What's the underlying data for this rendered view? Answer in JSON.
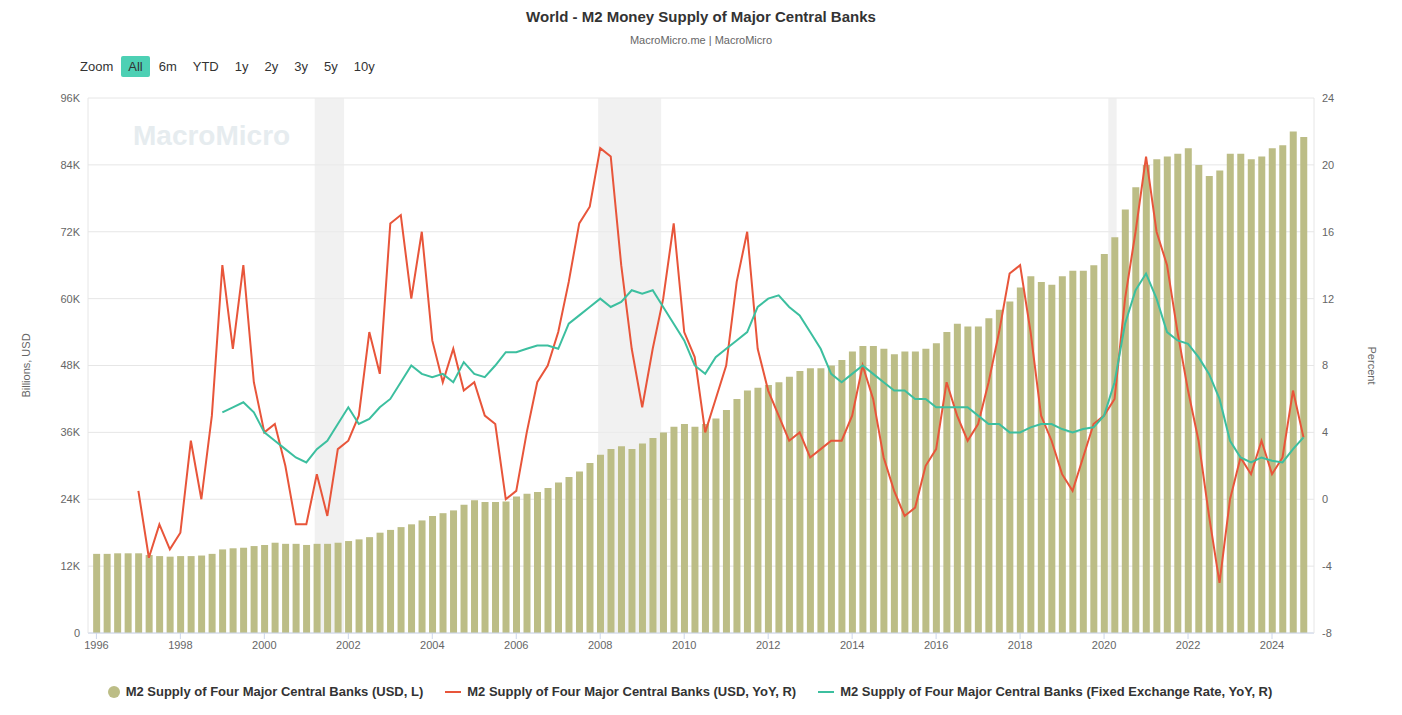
{
  "chart_data": {
    "type": "combo",
    "title": "World - M2 Money Supply of Major Central Banks",
    "subtitle": "MacroMicro.me | MacroMicro",
    "watermark": "MacroMicro",
    "zoom_label": "Zoom",
    "zoom_buttons": [
      "All",
      "6m",
      "YTD",
      "1y",
      "2y",
      "3y",
      "5y",
      "10y"
    ],
    "y_label": "Billions, USD",
    "y2_label": "Percent",
    "grid": true,
    "legend": "bottom",
    "xlim": [
      1995.8,
      2025.0
    ],
    "xticks": [
      1996,
      1998,
      2000,
      2002,
      2004,
      2006,
      2008,
      2010,
      2012,
      2014,
      2016,
      2018,
      2020,
      2022,
      2024
    ],
    "ylim": [
      0,
      96000
    ],
    "yticks": [
      {
        "value": 0,
        "label": "0"
      },
      {
        "value": 12000,
        "label": "12K"
      },
      {
        "value": 24000,
        "label": "24K"
      },
      {
        "value": 36000,
        "label": "36K"
      },
      {
        "value": 48000,
        "label": "48K"
      },
      {
        "value": 60000,
        "label": "60K"
      },
      {
        "value": 72000,
        "label": "72K"
      },
      {
        "value": 84000,
        "label": "84K"
      },
      {
        "value": 96000,
        "label": "96K"
      }
    ],
    "y2lim": [
      -8,
      24
    ],
    "y2ticks": [
      -8,
      -4,
      0,
      4,
      8,
      12,
      16,
      20,
      24
    ],
    "shaded_periods": [
      [
        2001.2,
        2001.9
      ],
      [
        2007.95,
        2009.45
      ],
      [
        2020.1,
        2020.3
      ]
    ],
    "x": [
      1996,
      1996.25,
      1996.5,
      1996.75,
      1997,
      1997.25,
      1997.5,
      1997.75,
      1998,
      1998.25,
      1998.5,
      1998.75,
      1999,
      1999.25,
      1999.5,
      1999.75,
      2000,
      2000.25,
      2000.5,
      2000.75,
      2001,
      2001.25,
      2001.5,
      2001.75,
      2002,
      2002.25,
      2002.5,
      2002.75,
      2003,
      2003.25,
      2003.5,
      2003.75,
      2004,
      2004.25,
      2004.5,
      2004.75,
      2005,
      2005.25,
      2005.5,
      2005.75,
      2006,
      2006.25,
      2006.5,
      2006.75,
      2007,
      2007.25,
      2007.5,
      2007.75,
      2008,
      2008.25,
      2008.5,
      2008.75,
      2009,
      2009.25,
      2009.5,
      2009.75,
      2010,
      2010.25,
      2010.5,
      2010.75,
      2011,
      2011.25,
      2011.5,
      2011.75,
      2012,
      2012.25,
      2012.5,
      2012.75,
      2013,
      2013.25,
      2013.5,
      2013.75,
      2014,
      2014.25,
      2014.5,
      2014.75,
      2015,
      2015.25,
      2015.5,
      2015.75,
      2016,
      2016.25,
      2016.5,
      2016.75,
      2017,
      2017.25,
      2017.5,
      2017.75,
      2018,
      2018.25,
      2018.5,
      2018.75,
      2019,
      2019.25,
      2019.5,
      2019.75,
      2020,
      2020.25,
      2020.5,
      2020.75,
      2021,
      2021.25,
      2021.5,
      2021.75,
      2022,
      2022.25,
      2022.5,
      2022.75,
      2023,
      2023.25,
      2023.5,
      2023.75,
      2024,
      2024.25,
      2024.5,
      2024.75
    ],
    "series": [
      {
        "name": "M2 Supply of Four Major Central Banks (USD, L)",
        "type": "bar",
        "axis": "y",
        "color": "#bcbd86",
        "values": [
          14200,
          14200,
          14300,
          14300,
          14300,
          14000,
          13800,
          13700,
          13800,
          13800,
          13900,
          14200,
          15000,
          15200,
          15300,
          15600,
          15800,
          16200,
          16000,
          16000,
          15800,
          16000,
          16000,
          16200,
          16500,
          16800,
          17200,
          18000,
          18500,
          19000,
          19500,
          20200,
          21000,
          21500,
          22000,
          23000,
          23800,
          23500,
          23500,
          23600,
          24500,
          25000,
          25300,
          26000,
          27000,
          28000,
          29000,
          30500,
          32000,
          33000,
          33500,
          33000,
          34000,
          35000,
          36000,
          37000,
          37500,
          37000,
          37500,
          38500,
          40000,
          42000,
          43500,
          44000,
          44500,
          45000,
          46000,
          47000,
          47500,
          47500,
          48000,
          49000,
          50500,
          51500,
          51500,
          51000,
          50000,
          50500,
          50500,
          51000,
          52000,
          54000,
          55500,
          55000,
          55000,
          56500,
          58000,
          59500,
          62000,
          64000,
          63000,
          62500,
          64000,
          65000,
          65000,
          66000,
          68000,
          71000,
          76000,
          80000,
          84000,
          85000,
          85500,
          86000,
          87000,
          84000,
          82000,
          83000,
          86000,
          86000,
          85000,
          85500,
          87000,
          87500,
          90000,
          89000
        ]
      },
      {
        "name": "M2 Supply of Four Major Central Banks (USD, YoY, R)",
        "type": "line",
        "axis": "y2",
        "color": "#e8553a",
        "values": [
          null,
          null,
          null,
          null,
          0.5,
          -3.5,
          -1.5,
          -3,
          -2,
          3.5,
          0,
          5,
          14,
          9,
          14,
          7,
          4,
          4.5,
          2,
          -1.5,
          -1.5,
          1.5,
          -1,
          3,
          3.5,
          5,
          10,
          7.5,
          16.5,
          17,
          12,
          16,
          9.5,
          7,
          9,
          6.5,
          7,
          5,
          4.5,
          0,
          0.5,
          4,
          7,
          8,
          10,
          13,
          16.5,
          17.5,
          21,
          20.5,
          14,
          9,
          5.5,
          9,
          12,
          16.5,
          10,
          8.5,
          4,
          6,
          8,
          13,
          16,
          9,
          6.5,
          5,
          3.5,
          4,
          2.5,
          3,
          3.5,
          3.5,
          5,
          8,
          6,
          2.5,
          0.5,
          -1,
          -0.5,
          2,
          3,
          7,
          5,
          3.5,
          4.5,
          7,
          10,
          13.5,
          14,
          10,
          5,
          3.5,
          1.5,
          0.5,
          2.5,
          4.5,
          5,
          6,
          12,
          16,
          20.5,
          16,
          14,
          10,
          6.5,
          3.5,
          -1,
          -5,
          0,
          2.5,
          1.5,
          3.5,
          1.5,
          2.5,
          6.5,
          3.7
        ]
      },
      {
        "name": "M2 Supply of Four Major Central Banks (Fixed Exchange Rate, YoY, R)",
        "type": "line",
        "axis": "y2",
        "color": "#3cbf9f",
        "values": [
          null,
          null,
          null,
          null,
          null,
          null,
          null,
          null,
          null,
          null,
          null,
          null,
          5.2,
          5.5,
          5.8,
          5.2,
          4,
          3.5,
          3,
          2.5,
          2.2,
          3,
          3.5,
          4.5,
          5.5,
          4.5,
          4.8,
          5.5,
          6,
          7,
          8,
          7.5,
          7.3,
          7.5,
          7,
          8.2,
          7.5,
          7.3,
          8,
          8.8,
          8.8,
          9,
          9.2,
          9.2,
          9,
          10.5,
          11,
          11.5,
          12,
          11.5,
          11.8,
          12.5,
          12.3,
          12.5,
          11.5,
          10.5,
          9.5,
          8,
          7.5,
          8.5,
          9,
          9.5,
          10,
          11.5,
          12,
          12.2,
          11.5,
          11,
          10,
          9,
          7.5,
          7,
          7.5,
          8,
          7.5,
          7,
          6.5,
          6.5,
          6,
          6,
          5.5,
          5.5,
          5.5,
          5.5,
          5,
          4.5,
          4.5,
          4,
          4,
          4.3,
          4.5,
          4.5,
          4.2,
          4,
          4.2,
          4.3,
          5,
          7,
          10.5,
          12.5,
          13.5,
          12,
          10,
          9.5,
          9.3,
          8.5,
          7.5,
          6,
          3.5,
          2.5,
          2.2,
          2.5,
          2.3,
          2.2,
          3,
          3.7
        ]
      }
    ]
  }
}
